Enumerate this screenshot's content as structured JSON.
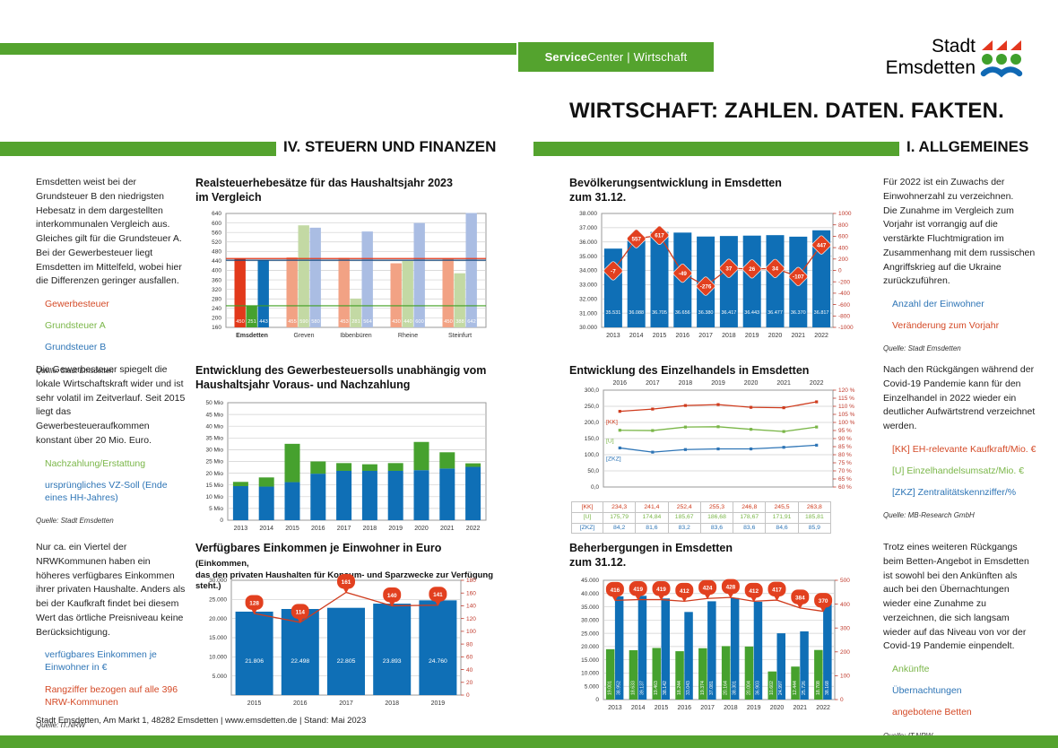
{
  "header": {
    "service_center": {
      "bold": "Service",
      "rest": "Center | Wirtschaft"
    },
    "logo": {
      "line1": "Stadt",
      "line2": "Emsdetten"
    },
    "title": "WIRTSCHAFT: ZAHLEN. DATEN. FAKTEN.",
    "section_left": "IV. STEUERN UND FINANZEN",
    "section_right": "I. ALLGEMEINES"
  },
  "colors": {
    "green": "#54a32e",
    "bar_red": "#e2391b",
    "bar_green": "#46a12e",
    "bar_blue": "#0f6fb6",
    "pastel_red": "#f2a284",
    "pastel_green": "#c3d9a4",
    "pastel_blue": "#aabde3",
    "marker_red": "#e2401f",
    "line_red": "#cf3c1e",
    "line_green": "#7ab648",
    "line_blue": "#2e75b6",
    "legend_red": "#d44a27",
    "legend_green": "#7ab648",
    "legend_blue": "#2e75b6",
    "ref_red": "#e2391b",
    "ref_green": "#3f9f22",
    "ref_blue": "#17497e",
    "axis_red": "#c0392b"
  },
  "blocks": [
    {
      "paragraph": "Emsdetten weist bei der Grundsteuer B den niedrigsten Hebesatz in dem dargestellten interkommunalen Vergleich aus. Gleiches gilt für die Grundsteuer A. Bei der Gewerbesteuer liegt Emsdetten im Mittelfeld, wobei hier die Differenzen geringer ausfallen.",
      "legend": [
        {
          "label": "Gewerbesteuer",
          "color": "legend_red"
        },
        {
          "label": "Grundsteuer A",
          "color": "legend_green"
        },
        {
          "label": "Grundsteuer B",
          "color": "legend_blue"
        }
      ],
      "source": "Quelle: Stadt Emsdetten"
    },
    {
      "paragraph": "Für 2022 ist ein Zuwachs der Einwohnerzahl zu verzeichnen.\nDie Zunahme im Vergleich zum Vorjahr ist vorrangig auf die verstärkte Fluchtmigration im Zusammenhang mit dem russischen Angriffskrieg auf die Ukraine zurückzuführen.",
      "legend": [
        {
          "label": "Anzahl der Einwohner",
          "color": "legend_blue"
        },
        {
          "label": "Veränderung zum Vorjahr",
          "color": "legend_red"
        }
      ],
      "source": "Quelle: Stadt Emsdetten"
    },
    {
      "paragraph": "Die Gewerbesteuer spiegelt die lokale Wirtschaftskraft wider und ist sehr volatil im Zeitverlauf. Seit 2015 liegt das Gewerbesteueraufkommen konstant über 20 Mio. Euro.",
      "legend": [
        {
          "label": "Nachzahlung/Erstattung",
          "color": "legend_green"
        },
        {
          "label": "ursprüngliches VZ-Soll (Ende eines HH-Jahres)",
          "color": "legend_blue"
        }
      ],
      "source": "Quelle: Stadt Emsdetten"
    },
    {
      "paragraph": "Nach den Rückgängen während der Covid-19 Pandemie kann für den Einzelhandel in 2022 wieder ein deutlicher Aufwärtstrend verzeichnet werden.",
      "legend": [
        {
          "label": "[KK] EH-relevante Kaufkraft/Mio. €",
          "color": "legend_red"
        },
        {
          "label": "[U] Einzelhandelsumsatz/Mio. €",
          "color": "legend_green"
        },
        {
          "label": "[ZKZ] Zentralitätskennziffer/%",
          "color": "legend_blue"
        }
      ],
      "source": "Quelle: MB-Research GmbH"
    },
    {
      "paragraph": "Nur ca. ein Viertel der NRWKommunen haben ein höheres verfügbares Einkommen ihrer privaten Haushalte. Anders als bei der Kaufkraft findet bei diesem Wert das örtliche Preisniveau keine Berücksichtigung.",
      "legend": [
        {
          "label": "verfügbares Einkommen je Einwohner in €",
          "color": "legend_blue"
        },
        {
          "label": "Rangziffer bezogen auf alle 396 NRW-Kommunen",
          "color": "legend_red"
        }
      ],
      "source": "Quelle: IT.NRW"
    },
    {
      "paragraph": "Trotz eines weiteren Rückgangs beim Betten-Angebot in Emsdetten ist sowohl bei den Ankünften als auch bei den Übernachtungen wieder eine Zunahme zu verzeichnen, die sich langsam wieder auf das Niveau von vor der Covid-19 Pandemie einpendelt.",
      "legend": [
        {
          "label": "Ankünfte",
          "color": "legend_green"
        },
        {
          "label": "Übernachtungen",
          "color": "legend_blue"
        },
        {
          "label": "angebotene Betten",
          "color": "legend_red"
        }
      ],
      "source": "Quelle: IT.NRW"
    }
  ],
  "chart_data": [
    {
      "id": "realsteuerhebesaetze",
      "type": "bar",
      "title_lines": [
        "Realsteuerhebesätze für das Haushaltsjahr 2023",
        "im Vergleich"
      ],
      "categories": [
        "Emsdetten",
        "Greven",
        "Ibbenbüren",
        "Rheine",
        "Steinfurt"
      ],
      "series": [
        {
          "name": "Gewerbesteuer",
          "values": [
            450,
            455,
            453,
            430,
            450
          ]
        },
        {
          "name": "Grundsteuer A",
          "values": [
            251,
            590,
            281,
            440,
            388
          ]
        },
        {
          "name": "Grundsteuer B",
          "values": [
            443,
            580,
            564,
            600,
            642
          ]
        }
      ],
      "ylim": [
        160,
        640
      ],
      "yticks": [
        [
          640,
          "640"
        ],
        [
          600,
          "600"
        ],
        [
          560,
          "560"
        ],
        [
          520,
          "520"
        ],
        [
          480,
          "480"
        ],
        [
          440,
          "440"
        ],
        [
          400,
          "400"
        ],
        [
          360,
          "360"
        ],
        [
          320,
          "320"
        ],
        [
          280,
          "280"
        ],
        [
          240,
          "240"
        ],
        [
          200,
          "200"
        ],
        [
          160,
          "160"
        ]
      ],
      "reference_lines": [
        {
          "value": 450,
          "color": "ref_red"
        },
        {
          "value": 251,
          "color": "ref_green"
        },
        {
          "value": 443,
          "color": "ref_blue"
        }
      ]
    },
    {
      "id": "bevoelkerungsentwicklung",
      "type": "bar-line",
      "title_lines": [
        "Bevölkerungsentwicklung in Emsdetten",
        "zum 31.12."
      ],
      "categories": [
        "2013",
        "2014",
        "2015",
        "2016",
        "2017",
        "2018",
        "2019",
        "2020",
        "2021",
        "2022"
      ],
      "bars": [
        35531,
        36088,
        36705,
        36656,
        36380,
        36417,
        36443,
        36477,
        36370,
        36817
      ],
      "bar_labels": [
        "35.531",
        "36.088",
        "36.705",
        "36.656",
        "36.380",
        "36.417",
        "36.443",
        "36.477",
        "36.370",
        "36.817"
      ],
      "line": [
        -7,
        557,
        617,
        -49,
        -276,
        37,
        26,
        34,
        -107,
        447
      ],
      "line_labels": [
        "-7",
        "557",
        "617",
        "-49",
        "-276",
        "37",
        "26",
        "34",
        "-107",
        "447"
      ],
      "ylim_left": [
        30000,
        38000
      ],
      "yticks_left": [
        [
          38000,
          "38.000"
        ],
        [
          37000,
          "37.000"
        ],
        [
          36000,
          "36.000"
        ],
        [
          35000,
          "35.000"
        ],
        [
          34000,
          "34.000"
        ],
        [
          33000,
          "33.000"
        ],
        [
          32000,
          "32.000"
        ],
        [
          31000,
          "31.000"
        ],
        [
          30000,
          "30.000"
        ]
      ],
      "ylim_right": [
        -1000,
        1000
      ],
      "yticks_right": [
        [
          1000,
          "1000"
        ],
        [
          800,
          "800"
        ],
        [
          600,
          "600"
        ],
        [
          400,
          "400"
        ],
        [
          200,
          "200"
        ],
        [
          0,
          "0"
        ],
        [
          -200,
          "-200"
        ],
        [
          -400,
          "-400"
        ],
        [
          -600,
          "-600"
        ],
        [
          -800,
          "-800"
        ],
        [
          -1000,
          "-1000"
        ]
      ]
    },
    {
      "id": "gewerbesteuersoll",
      "type": "stacked-bar",
      "title_lines": [
        "Entwicklung des Gewerbesteuersolls unabhängig vom",
        "Haushaltsjahr Voraus- und Nachzahlung"
      ],
      "categories": [
        "2013",
        "2014",
        "2015",
        "2016",
        "2017",
        "2018",
        "2019",
        "2020",
        "2021",
        "2022"
      ],
      "series": [
        {
          "name": "ursprüngliches VZ-Soll (Ende eines HH-Jahres)",
          "values": [
            14.5,
            14.3,
            16.2,
            19.8,
            21.0,
            21.0,
            21.0,
            21.3,
            22.0,
            22.7
          ]
        },
        {
          "name": "Nachzahlung/Erstattung",
          "values": [
            1.8,
            3.9,
            16.3,
            5.2,
            3.3,
            2.8,
            3.3,
            12.0,
            6.9,
            1.5
          ]
        }
      ],
      "ylim": [
        0,
        50
      ],
      "yticks": [
        [
          50,
          "50 Mio"
        ],
        [
          45,
          "45 Mio"
        ],
        [
          40,
          "40 Mio"
        ],
        [
          35,
          "35 Mio"
        ],
        [
          30,
          "30 Mio"
        ],
        [
          25,
          "25 Mio"
        ],
        [
          20,
          "20 Mio"
        ],
        [
          15,
          "15 Mio"
        ],
        [
          10,
          "10 Mio"
        ],
        [
          5,
          "5 Mio"
        ],
        [
          0,
          "0"
        ]
      ]
    },
    {
      "id": "einzelhandel",
      "type": "line",
      "title_lines": [
        "Entwicklung des Einzelhandels in Emsdetten"
      ],
      "categories": [
        "2016",
        "2017",
        "2018",
        "2019",
        "2020",
        "2021",
        "2022"
      ],
      "series": [
        {
          "tag": "[KK]",
          "axis": "left",
          "color": "line_red",
          "values": [
            234.3,
            241.4,
            252.4,
            255.3,
            246.8,
            245.5,
            263.8
          ],
          "table": [
            "234,3",
            "241,4",
            "252,4",
            "255,3",
            "246,8",
            "245,5",
            "263,8"
          ]
        },
        {
          "tag": "[U]",
          "axis": "left",
          "color": "line_green",
          "values": [
            175.79,
            174.84,
            185.67,
            186.68,
            178.67,
            171.91,
            185.81
          ],
          "table": [
            "175,79",
            "174,84",
            "185,67",
            "186,68",
            "178,67",
            "171,91",
            "185,81"
          ]
        },
        {
          "tag": "[ZKZ]",
          "axis": "right",
          "color": "line_blue",
          "values": [
            84.2,
            81.6,
            83.2,
            83.6,
            83.6,
            84.6,
            85.9
          ],
          "table": [
            "84,2",
            "81,6",
            "83,2",
            "83,6",
            "83,6",
            "84,6",
            "85,9"
          ]
        }
      ],
      "ylim_left": [
        0,
        300
      ],
      "yticks_left": [
        [
          300,
          "300,0"
        ],
        [
          250,
          "250,0"
        ],
        [
          200,
          "200,0"
        ],
        [
          150,
          "150,0"
        ],
        [
          100,
          "100,0"
        ],
        [
          50,
          "50,0"
        ],
        [
          0,
          "0,0"
        ]
      ],
      "ylim_right": [
        60,
        120
      ],
      "yticks_right": [
        [
          120,
          "120 %"
        ],
        [
          115,
          "115 %"
        ],
        [
          110,
          "110 %"
        ],
        [
          105,
          "105 %"
        ],
        [
          100,
          "100 %"
        ],
        [
          95,
          "95 %"
        ],
        [
          90,
          "90 %"
        ],
        [
          85,
          "85 %"
        ],
        [
          80,
          "80 %"
        ],
        [
          75,
          "75 %"
        ],
        [
          70,
          "70 %"
        ],
        [
          65,
          "65 %"
        ],
        [
          60,
          "60 %"
        ]
      ]
    },
    {
      "id": "verfuegbares_einkommen",
      "type": "bar-line",
      "title_lines": [
        "Verfügbares Einkommen je Einwohner in Euro",
        "(Einkommen,",
        "das den privaten Haushalten für Konsum- und Sparzwecke zur Verfügung steht.)"
      ],
      "categories": [
        "2015",
        "2016",
        "2017",
        "2018",
        "2019"
      ],
      "bars": [
        21806,
        22498,
        22805,
        23893,
        24760
      ],
      "bar_labels": [
        "21.806",
        "22.498",
        "22.805",
        "23.893",
        "24.760"
      ],
      "line": [
        128,
        114,
        161,
        140,
        141
      ],
      "line_labels": [
        "128",
        "114",
        "161",
        "140",
        "141"
      ],
      "ylim_left": [
        0,
        30000
      ],
      "yticks_left": [
        [
          30000,
          "30.000"
        ],
        [
          25000,
          "25.000"
        ],
        [
          20000,
          "20.000"
        ],
        [
          15000,
          "15.000"
        ],
        [
          10000,
          "10.000"
        ],
        [
          5000,
          "5.000"
        ]
      ],
      "ylim_right": [
        0,
        180
      ],
      "yticks_right": [
        [
          180,
          "180"
        ],
        [
          160,
          "160"
        ],
        [
          140,
          "140"
        ],
        [
          120,
          "120"
        ],
        [
          100,
          "100"
        ],
        [
          80,
          "80"
        ],
        [
          60,
          "60"
        ],
        [
          40,
          "40"
        ],
        [
          20,
          "20"
        ],
        [
          0,
          "0"
        ]
      ]
    },
    {
      "id": "beherbergungen",
      "type": "grouped-bar-line",
      "title_lines": [
        "Beherbergungen in Emsdetten",
        "zum 31.12."
      ],
      "categories": [
        "2013",
        "2014",
        "2015",
        "2016",
        "2017",
        "2018",
        "2019",
        "2020",
        "2021",
        "2022"
      ],
      "series": [
        {
          "name": "Ankünfte",
          "color": "bar_green",
          "values": [
            19001,
            18633,
            19463,
            18244,
            19374,
            20164,
            20004,
            10602,
            12444,
            18708
          ],
          "labels": [
            "19.001",
            "18.633",
            "19.463",
            "18.244",
            "19.374",
            "20.164",
            "20.004",
            "10.602",
            "12.444",
            "18.708"
          ]
        },
        {
          "name": "Übernachtungen",
          "color": "bar_blue",
          "values": [
            38952,
            39137,
            38142,
            33043,
            37081,
            38301,
            36903,
            24997,
            25726,
            38168
          ],
          "labels": [
            "38.952",
            "39.137",
            "38.142",
            "33.043",
            "37.081",
            "38.301",
            "36.903",
            "24.997",
            "25.726",
            "38.168"
          ]
        }
      ],
      "line": [
        416,
        419,
        419,
        412,
        424,
        428,
        412,
        417,
        384,
        370
      ],
      "line_labels": [
        "416",
        "419",
        "419",
        "412",
        "424",
        "428",
        "412",
        "417",
        "384",
        "370"
      ],
      "ylim_left": [
        0,
        45000
      ],
      "yticks_left": [
        [
          45000,
          "45.000"
        ],
        [
          40000,
          "40.000"
        ],
        [
          35000,
          "35.000"
        ],
        [
          30000,
          "30.000"
        ],
        [
          25000,
          "25.000"
        ],
        [
          20000,
          "20.000"
        ],
        [
          15000,
          "15.000"
        ],
        [
          10000,
          "10.000"
        ],
        [
          5000,
          "5.000"
        ],
        [
          0,
          "0"
        ]
      ],
      "ylim_right": [
        0,
        500
      ],
      "yticks_right": [
        [
          500,
          "500"
        ],
        [
          400,
          "400"
        ],
        [
          300,
          "300"
        ],
        [
          200,
          "200"
        ],
        [
          100,
          "100"
        ],
        [
          0,
          "0"
        ]
      ]
    }
  ],
  "footer": {
    "text": "Stadt Emsdetten, Am Markt 1, 48282 Emsdetten | www.emsdetten.de | Stand: Mai 2023"
  }
}
